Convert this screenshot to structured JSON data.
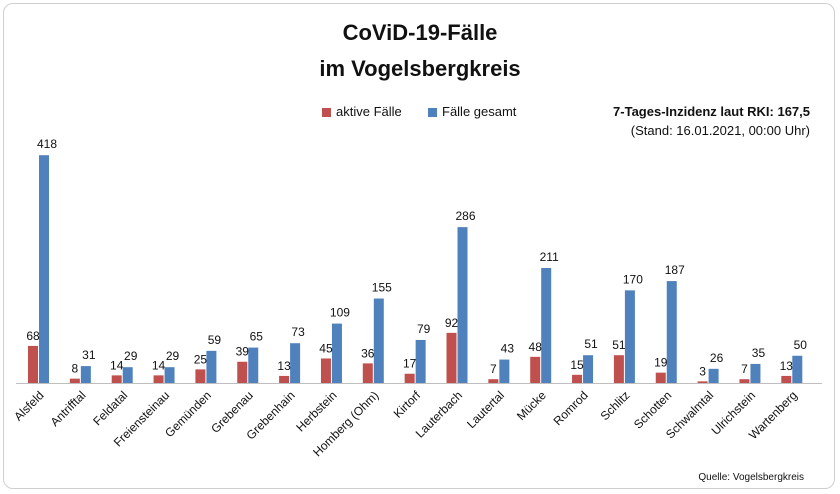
{
  "title_line1": "CoViD-19-Fälle",
  "title_line2": "im Vogelsbergkreis",
  "inzidenz": "7-Tages-Inzidenz laut RKI: 167,5",
  "stand": "(Stand: 16.01.2021, 00:00 Uhr)",
  "source": "Quelle: Vogelsbergkreis",
  "colors": {
    "active": "#c0504d",
    "total": "#4f81bd"
  },
  "chart_data": {
    "type": "bar",
    "title": "CoViD-19-Fälle im Vogelsbergkreis",
    "legend_position": "top",
    "grid": false,
    "ylim": [
      0,
      430
    ],
    "categories": [
      "Alsfeld",
      "Antrifftal",
      "Feldatal",
      "Freiensteinau",
      "Gemünden",
      "Grebenau",
      "Grebenhain",
      "Herbstein",
      "Homberg (Ohm)",
      "Kirtorf",
      "Lauterbach",
      "Lautertal",
      "Mücke",
      "Romrod",
      "Schlitz",
      "Schotten",
      "Schwalmtal",
      "Ulrichstein",
      "Wartenberg"
    ],
    "series": [
      {
        "name": "aktive Fälle",
        "values": [
          68,
          8,
          14,
          14,
          25,
          39,
          13,
          45,
          36,
          17,
          92,
          7,
          48,
          15,
          51,
          19,
          3,
          7,
          13
        ]
      },
      {
        "name": "Fälle gesamt",
        "values": [
          418,
          31,
          29,
          29,
          59,
          65,
          73,
          109,
          155,
          79,
          286,
          43,
          211,
          51,
          170,
          187,
          26,
          35,
          50
        ]
      }
    ]
  }
}
